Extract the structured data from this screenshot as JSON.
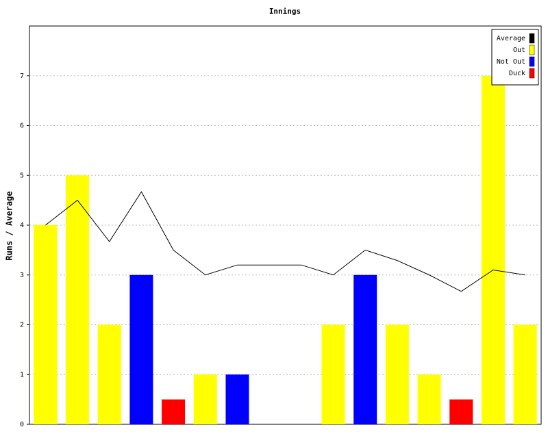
{
  "chart_data": {
    "type": "bar",
    "title": "Innings",
    "y_label": "Runs / Average",
    "categories": [
      null,
      null,
      null,
      null,
      null,
      null,
      null,
      null,
      null,
      null,
      null,
      null,
      null,
      null,
      null,
      null
    ],
    "series": [
      {
        "name": "Average",
        "color": "#000000",
        "type": "line",
        "values": [
          4,
          4.5,
          3.67,
          4.67,
          3.5,
          3,
          3.2,
          3.2,
          3.2,
          3,
          3.5,
          3.29,
          3,
          2.67,
          3.1,
          3
        ]
      },
      {
        "name": "Out",
        "color": "#ffff00",
        "type": "bar",
        "values": [
          4,
          5,
          2,
          null,
          null,
          1,
          null,
          null,
          null,
          2,
          null,
          2,
          1,
          null,
          7,
          2
        ]
      },
      {
        "name": "Not Out",
        "color": "#0000ff",
        "type": "bar",
        "values": [
          null,
          null,
          null,
          3,
          null,
          null,
          1,
          0,
          0,
          null,
          3,
          null,
          null,
          null,
          null,
          null
        ]
      },
      {
        "name": "Duck",
        "color": "#ff0000",
        "type": "bar",
        "values": [
          null,
          null,
          null,
          null,
          0.5,
          null,
          null,
          null,
          null,
          null,
          null,
          null,
          null,
          0.5,
          null,
          null
        ]
      }
    ],
    "ylim": [
      0,
      8
    ],
    "yticks": [
      0,
      1,
      2,
      3,
      4,
      5,
      6,
      7
    ],
    "grid": true,
    "legend": "top-right"
  }
}
